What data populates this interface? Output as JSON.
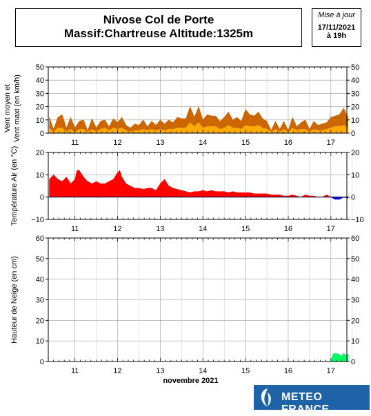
{
  "header": {
    "title_line1": "Nivose Col de Porte",
    "title_line2": "Massif:Chartreuse Altitude:1325m"
  },
  "update": {
    "label": "Mise à jour",
    "date": "17/11/2021",
    "time": "à 19h"
  },
  "logo": {
    "text": "METEO FRANCE",
    "brand_color": "#1e63a8"
  },
  "colors": {
    "wind_max": "#cc6600",
    "wind_mean": "#ffaa00",
    "temp_pos": "#ff0000",
    "temp_neg": "#0000ff",
    "snow": "#00ff66"
  },
  "chart_data": [
    {
      "type": "area",
      "ylabel_line1": "Vent moyen et",
      "ylabel_line2": "Vent maxi (en km/h)",
      "ylim": [
        0,
        50
      ],
      "yticks": [
        0,
        10,
        20,
        30,
        40,
        50
      ],
      "xlim": [
        10.375,
        17.375
      ],
      "days": [
        "11",
        "12",
        "13",
        "14",
        "15",
        "16",
        "17"
      ],
      "grid": true,
      "series": [
        {
          "key": "max",
          "x": [
            10.4,
            10.5,
            10.6,
            10.7,
            10.8,
            10.9,
            11.0,
            11.1,
            11.2,
            11.3,
            11.4,
            11.5,
            11.6,
            11.7,
            11.8,
            11.9,
            12.0,
            12.1,
            12.2,
            12.3,
            12.4,
            12.5,
            12.6,
            12.7,
            12.8,
            12.9,
            13.0,
            13.1,
            13.2,
            13.3,
            13.4,
            13.5,
            13.6,
            13.7,
            13.8,
            13.9,
            14.0,
            14.1,
            14.2,
            14.3,
            14.4,
            14.5,
            14.6,
            14.7,
            14.8,
            14.9,
            15.0,
            15.1,
            15.2,
            15.3,
            15.4,
            15.5,
            15.6,
            15.7,
            15.8,
            15.9,
            16.0,
            16.1,
            16.2,
            16.3,
            16.4,
            16.5,
            16.6,
            16.7,
            16.8,
            16.9,
            17.0,
            17.1,
            17.2,
            17.3,
            17.4
          ],
          "y": [
            12,
            3,
            12,
            14,
            4,
            12,
            4,
            9,
            10,
            2,
            11,
            4,
            9,
            10,
            5,
            11,
            8,
            12,
            6,
            4,
            7,
            6,
            10,
            5,
            9,
            6,
            10,
            7,
            10,
            8,
            12,
            11,
            11,
            20,
            12,
            20,
            10,
            14,
            13,
            13,
            9,
            12,
            16,
            10,
            12,
            9,
            18,
            14,
            13,
            16,
            11,
            9,
            2,
            9,
            3,
            9,
            2,
            12,
            5,
            8,
            10,
            3,
            9,
            6,
            7,
            8,
            12,
            13,
            14,
            19,
            12
          ]
        },
        {
          "key": "mean",
          "x": [
            10.4,
            10.5,
            10.6,
            10.7,
            10.8,
            10.9,
            11.0,
            11.1,
            11.2,
            11.3,
            11.4,
            11.5,
            11.6,
            11.7,
            11.8,
            11.9,
            12.0,
            12.1,
            12.2,
            12.3,
            12.4,
            12.5,
            12.6,
            12.7,
            12.8,
            12.9,
            13.0,
            13.1,
            13.2,
            13.3,
            13.4,
            13.5,
            13.6,
            13.7,
            13.8,
            13.9,
            14.0,
            14.1,
            14.2,
            14.3,
            14.4,
            14.5,
            14.6,
            14.7,
            14.8,
            14.9,
            15.0,
            15.1,
            15.2,
            15.3,
            15.4,
            15.5,
            15.6,
            15.7,
            15.8,
            15.9,
            16.0,
            16.1,
            16.2,
            16.3,
            16.4,
            16.5,
            16.6,
            16.7,
            16.8,
            16.9,
            17.0,
            17.1,
            17.2,
            17.3,
            17.4
          ],
          "y": [
            4,
            1,
            4,
            4,
            1,
            3,
            1,
            3,
            3,
            1,
            3,
            1,
            3,
            4,
            2,
            4,
            3,
            4,
            2,
            1,
            2,
            2,
            3,
            2,
            3,
            2,
            3,
            2,
            3,
            3,
            4,
            4,
            4,
            8,
            5,
            8,
            4,
            5,
            5,
            5,
            3,
            4,
            6,
            4,
            4,
            3,
            6,
            5,
            5,
            6,
            4,
            3,
            1,
            3,
            1,
            3,
            1,
            4,
            2,
            3,
            3,
            1,
            3,
            2,
            2,
            3,
            4,
            5,
            5,
            6,
            4
          ]
        }
      ]
    },
    {
      "type": "area",
      "ylabel": "Température Air (en °C)",
      "ylim": [
        -10,
        20
      ],
      "yticks": [
        -10,
        0,
        10,
        20
      ],
      "xlim": [
        10.375,
        17.375
      ],
      "days": [
        "11",
        "12",
        "13",
        "14",
        "15",
        "16",
        "17"
      ],
      "grid": true,
      "series": [
        {
          "key": "temperature",
          "x": [
            10.4,
            10.5,
            10.6,
            10.7,
            10.8,
            10.9,
            11.0,
            11.05,
            11.1,
            11.2,
            11.3,
            11.4,
            11.5,
            11.6,
            11.7,
            11.8,
            11.9,
            12.0,
            12.05,
            12.1,
            12.2,
            12.3,
            12.4,
            12.5,
            12.6,
            12.7,
            12.8,
            12.9,
            13.0,
            13.1,
            13.2,
            13.3,
            13.4,
            13.5,
            13.6,
            13.7,
            13.8,
            13.9,
            14.0,
            14.1,
            14.2,
            14.3,
            14.4,
            14.5,
            14.6,
            14.7,
            14.8,
            14.9,
            15.0,
            15.1,
            15.2,
            15.3,
            15.4,
            15.5,
            15.6,
            15.7,
            15.8,
            15.9,
            16.0,
            16.1,
            16.2,
            16.3,
            16.4,
            16.5,
            16.6,
            16.7,
            16.8,
            16.9,
            17.0,
            17.1,
            17.2,
            17.3,
            17.4
          ],
          "y": [
            8,
            10,
            8,
            7,
            9,
            6,
            8,
            12,
            12,
            9,
            7,
            6,
            7,
            6,
            6,
            7,
            8,
            11,
            12,
            9,
            6,
            5,
            4,
            4,
            3.5,
            4,
            4,
            3,
            6,
            8,
            5,
            4,
            3.5,
            3,
            2.5,
            2,
            2.5,
            2.5,
            3,
            2.5,
            3,
            2.5,
            2.5,
            2.5,
            2,
            2.5,
            2,
            2,
            2,
            2,
            1.5,
            1.5,
            1.5,
            1.5,
            1,
            1,
            1,
            0.5,
            0.5,
            1,
            0.5,
            0,
            1,
            0.5,
            0.5,
            0,
            0,
            1,
            0,
            -1,
            -1,
            0,
            -0.5
          ]
        }
      ]
    },
    {
      "type": "area",
      "ylabel": "Hauteur de Neige (en cm)",
      "xlabel": "novembre 2021",
      "ylim": [
        0,
        60
      ],
      "yticks": [
        0,
        10,
        20,
        30,
        40,
        50,
        60
      ],
      "xlim": [
        10.375,
        17.375
      ],
      "days": [
        "11",
        "12",
        "13",
        "14",
        "15",
        "16",
        "17"
      ],
      "grid": true,
      "series": [
        {
          "key": "snow",
          "x": [
            10.4,
            17.0,
            17.05,
            17.1,
            17.2,
            17.25,
            17.3,
            17.35,
            17.4
          ],
          "y": [
            0,
            0,
            3.5,
            4,
            3.5,
            2.5,
            4,
            3,
            3.5
          ]
        }
      ]
    }
  ]
}
